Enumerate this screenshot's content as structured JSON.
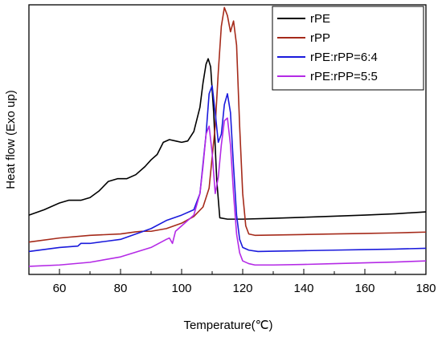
{
  "chart_data": {
    "type": "line",
    "xlabel": "Temperature(℃)",
    "ylabel": "Heat flow (Exo up)",
    "xlim": [
      50,
      180
    ],
    "ylim": [
      0,
      1
    ],
    "xticks": [
      60,
      80,
      100,
      120,
      140,
      160,
      180
    ],
    "yticks_visible": false,
    "grid": false,
    "legend_position": "top-right",
    "series": [
      {
        "name": "rPE",
        "color": "#000000",
        "x": [
          50,
          55,
          60,
          63,
          67,
          70,
          73,
          76,
          79,
          82,
          85,
          88,
          90,
          92,
          94,
          96,
          98,
          100,
          102,
          104,
          106,
          107,
          108,
          108.7,
          109.5,
          110.5,
          111.5,
          112.5,
          115,
          120,
          130,
          140,
          150,
          160,
          170,
          180
        ],
        "y": [
          0.22,
          0.24,
          0.265,
          0.275,
          0.275,
          0.285,
          0.31,
          0.345,
          0.355,
          0.355,
          0.37,
          0.4,
          0.425,
          0.445,
          0.49,
          0.5,
          0.495,
          0.49,
          0.495,
          0.53,
          0.62,
          0.71,
          0.78,
          0.8,
          0.77,
          0.6,
          0.35,
          0.21,
          0.205,
          0.205,
          0.208,
          0.212,
          0.216,
          0.22,
          0.225,
          0.232
        ]
      },
      {
        "name": "rPP",
        "color": "#a52a1a",
        "x": [
          50,
          60,
          70,
          80,
          85,
          87,
          90,
          95,
          100,
          104,
          107,
          109,
          111,
          112,
          113,
          114,
          115,
          116,
          117,
          118,
          119,
          120,
          121,
          122,
          124,
          130,
          140,
          150,
          160,
          170,
          180
        ],
        "y": [
          0.12,
          0.135,
          0.145,
          0.15,
          0.158,
          0.16,
          0.16,
          0.17,
          0.19,
          0.215,
          0.25,
          0.32,
          0.55,
          0.75,
          0.92,
          0.99,
          0.96,
          0.9,
          0.94,
          0.85,
          0.55,
          0.3,
          0.18,
          0.15,
          0.145,
          0.146,
          0.148,
          0.15,
          0.152,
          0.154,
          0.157
        ]
      },
      {
        "name": "rPE:rPP=6:4",
        "color": "#1a1adc",
        "x": [
          50,
          60,
          66,
          67,
          70,
          80,
          90,
          95,
          100,
          104,
          106,
          108,
          109,
          110,
          111,
          112,
          113,
          114,
          115,
          116,
          117,
          118,
          119,
          120,
          122,
          125,
          130,
          140,
          150,
          160,
          170,
          180
        ],
        "y": [
          0.085,
          0.1,
          0.105,
          0.115,
          0.115,
          0.13,
          0.17,
          0.2,
          0.22,
          0.24,
          0.3,
          0.52,
          0.67,
          0.7,
          0.6,
          0.49,
          0.52,
          0.63,
          0.67,
          0.6,
          0.4,
          0.22,
          0.13,
          0.1,
          0.09,
          0.085,
          0.086,
          0.088,
          0.09,
          0.092,
          0.094,
          0.097
        ]
      },
      {
        "name": "rPE:rPP=5:5",
        "color": "#b42ae6",
        "x": [
          50,
          60,
          70,
          80,
          90,
          95,
          96,
          97,
          98,
          100,
          104,
          106,
          107,
          108,
          109,
          110,
          111,
          112,
          113,
          114,
          115,
          116,
          117,
          118,
          119,
          120,
          122,
          124,
          130,
          140,
          150,
          160,
          170,
          180
        ],
        "y": [
          0.03,
          0.035,
          0.045,
          0.065,
          0.1,
          0.13,
          0.135,
          0.115,
          0.16,
          0.18,
          0.22,
          0.3,
          0.4,
          0.52,
          0.55,
          0.45,
          0.3,
          0.36,
          0.48,
          0.57,
          0.58,
          0.48,
          0.3,
          0.15,
          0.08,
          0.05,
          0.04,
          0.035,
          0.035,
          0.037,
          0.04,
          0.043,
          0.046,
          0.05
        ]
      }
    ]
  }
}
